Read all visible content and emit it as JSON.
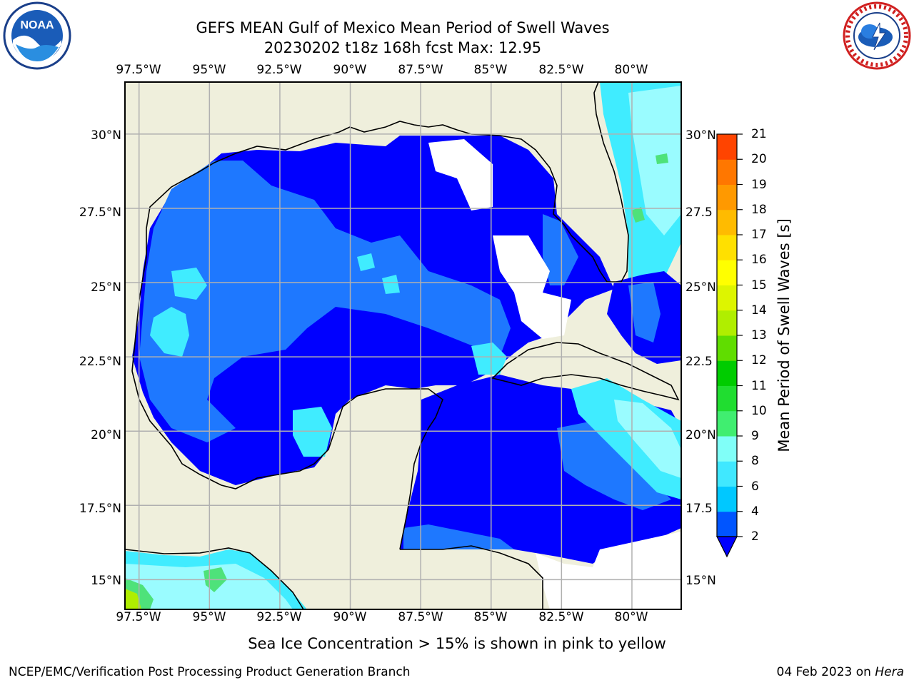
{
  "title": {
    "line1": "GEFS MEAN Gulf of Mexico Mean Period of Swell Waves",
    "line2": "20230202 t18z 168h fcst   Max: 12.95"
  },
  "logos": {
    "left": "noaa-logo",
    "right": "national-weather-service-logo"
  },
  "axes": {
    "longitude_labels": [
      "97.5°W",
      "95°W",
      "92.5°W",
      "90°W",
      "87.5°W",
      "85°W",
      "82.5°W",
      "80°W"
    ],
    "latitude_labels": [
      "30°N",
      "27.5°N",
      "25°N",
      "22.5°N",
      "20°N",
      "17.5°N",
      "15°N"
    ],
    "latitude_labels_right": [
      "30°N",
      "27.5",
      "25°N",
      "22.5",
      "20°N",
      "17.5",
      "15°N"
    ],
    "lon_range": [
      -98,
      -78.25
    ],
    "lat_range": [
      14,
      31.75
    ]
  },
  "colorbar": {
    "title": "Mean Period of Swell Waves [s]",
    "ticks": [
      "2",
      "4",
      "6",
      "8",
      "9",
      "10",
      "11",
      "12",
      "13",
      "14",
      "15",
      "16",
      "17",
      "18",
      "19",
      "20",
      "21"
    ],
    "colors": [
      "#0055ff",
      "#00c8ff",
      "#40e8ff",
      "#80fff8",
      "#40ee70",
      "#20dd30",
      "#00cc00",
      "#60dd00",
      "#b0ee00",
      "#ddf500",
      "#ffff00",
      "#ffe000",
      "#ffbb00",
      "#ff9900",
      "#ff7700",
      "#ff4400",
      "#ff1100"
    ],
    "extend_below_color": "#0000ff"
  },
  "colors": {
    "land": "#efefdc",
    "deep_blue": "#0000ff",
    "medium_blue": "#1e78ff",
    "cyan": "#40ecff",
    "light_cyan": "#9afcff",
    "green": "#4ee27a",
    "grid": "#b0b0b0"
  },
  "footnote": "Sea Ice Concentration > 15% is shown in pink to yellow",
  "credit": {
    "left": "NCEP/EMC/Verification Post Processing Product Generation Branch",
    "right_date": "04 Feb 2023 on ",
    "right_host": "Hera"
  }
}
